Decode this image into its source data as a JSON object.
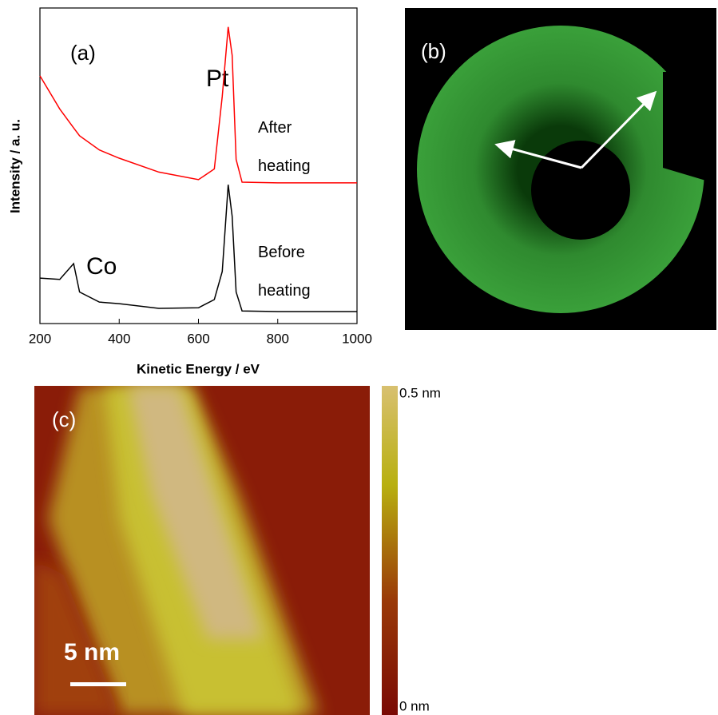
{
  "chart_data": {
    "type": "line",
    "x_label": "Kinetic Energy / eV",
    "y_label": "Intensity / a. u.",
    "x": [
      200,
      250,
      285,
      300,
      350,
      400,
      500,
      600,
      640,
      660,
      675,
      685,
      695,
      710,
      800,
      1000
    ],
    "series": [
      {
        "name": "After heating",
        "color": "#ff0000",
        "values": [
          78.5,
          68,
          62,
          59.5,
          55,
          52.4,
          48,
          45.6,
          49,
          72,
          94,
          85,
          52,
          44.8,
          44.6,
          44.6
        ]
      },
      {
        "name": "Before heating",
        "color": "#000000",
        "values": [
          14.4,
          14,
          19,
          10,
          6.8,
          6.3,
          4.8,
          5,
          7.6,
          16.5,
          44,
          34,
          10,
          4,
          3.8,
          3.8
        ]
      }
    ],
    "xlim": [
      200,
      1000
    ],
    "xticks": [
      200,
      400,
      600,
      800,
      1000
    ],
    "ylim": [
      0,
      100
    ],
    "annotations": [
      "(a)",
      "Pt",
      "Co"
    ]
  },
  "panels": {
    "b": {
      "label": "(b)"
    },
    "c": {
      "label": "(c)",
      "scale_bar": "5 nm",
      "colorbar_max": "0.5 nm",
      "colorbar_min": "0 nm"
    }
  }
}
